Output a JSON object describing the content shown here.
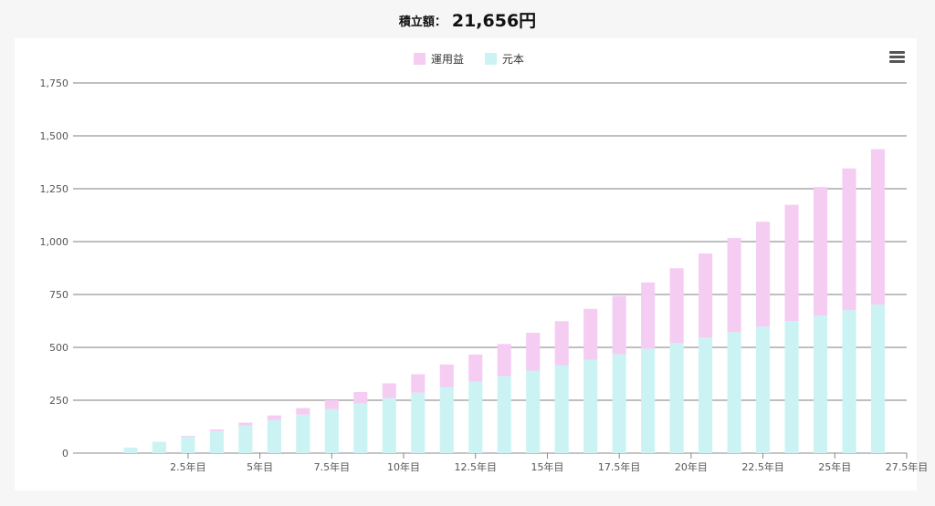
{
  "header": {
    "label": "積立額：",
    "value": "21,656円"
  },
  "toolbar": {
    "menu_icon": "hamburger-menu-icon"
  },
  "colors": {
    "profit": "#f5cdf3",
    "principal": "#cbf3f4",
    "grid": "#555555"
  },
  "chart_data": {
    "type": "bar",
    "stacked": true,
    "title": "",
    "xlabel": "",
    "ylabel": "",
    "ylim": [
      0,
      1750
    ],
    "yticks": [
      0,
      250,
      500,
      750,
      1000,
      1250,
      1500,
      1750
    ],
    "ytick_labels": [
      "0",
      "250",
      "500",
      "750",
      "1,000",
      "1,250",
      "1,500",
      "1,750"
    ],
    "x": [
      0.5,
      1.5,
      2.5,
      3.5,
      4.5,
      5.5,
      6.5,
      7.5,
      8.5,
      9.5,
      10.5,
      11.5,
      12.5,
      13.5,
      14.5,
      15.5,
      16.5,
      17.5,
      18.5,
      19.5,
      20.5,
      21.5,
      22.5,
      23.5,
      24.5,
      25.5,
      26.5
    ],
    "xlim": [
      -1.5,
      27.5
    ],
    "xticks": [
      2.5,
      5,
      7.5,
      10,
      12.5,
      15,
      17.5,
      20,
      22.5,
      25,
      27.5
    ],
    "xtick_labels": [
      "2.5年目",
      "5年目",
      "7.5年目",
      "10年目",
      "12.5年目",
      "15年目",
      "17.5年目",
      "20年目",
      "22.5年目",
      "25年目",
      "27.5年目"
    ],
    "legend": {
      "placement": "top-center"
    },
    "grid": true,
    "series": [
      {
        "name": "運用益",
        "color": "#f5cdf3",
        "values": [
          0,
          1,
          4,
          8,
          14,
          22,
          31,
          42,
          55,
          70,
          87,
          107,
          128,
          152,
          179,
          208,
          240,
          275,
          313,
          354,
          398,
          445,
          496,
          550,
          608,
          670,
          735
        ]
      },
      {
        "name": "元本",
        "color": "#cbf3f4",
        "values": [
          26,
          52,
          78,
          104,
          130,
          156,
          182,
          208,
          234,
          260,
          286,
          312,
          338,
          364,
          390,
          416,
          442,
          468,
          494,
          520,
          546,
          572,
          598,
          624,
          650,
          676,
          702
        ]
      }
    ]
  }
}
